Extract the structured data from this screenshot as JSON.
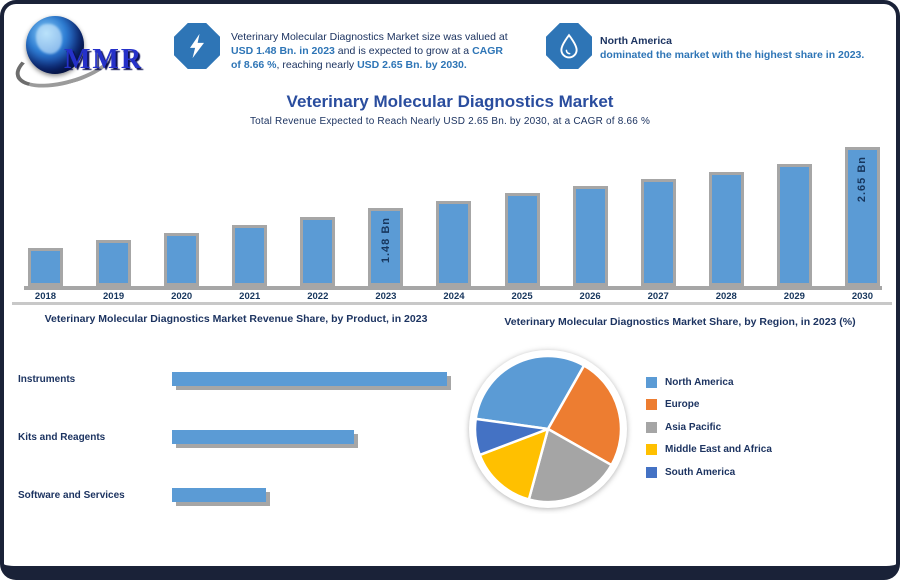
{
  "logo": {
    "brand": "MMR"
  },
  "header": {
    "block1": {
      "icon": "lightning-icon",
      "parts": [
        {
          "text": "Veterinary Molecular Diagnostics Market size was valued at ",
          "style": "dark"
        },
        {
          "text": "USD 1.48 Bn. in 2023",
          "style": "blue"
        },
        {
          "text": " and is expected to grow at a ",
          "style": "dark"
        },
        {
          "text": "CAGR of 8.66 %",
          "style": "blue"
        },
        {
          "text": ", reaching nearly ",
          "style": "dark"
        },
        {
          "text": "USD 2.65 Bn. by 2030.",
          "style": "blue"
        }
      ]
    },
    "block2": {
      "icon": "water-drop-icon",
      "line1": "North America",
      "line2": "dominated the market with the highest share in 2023."
    }
  },
  "title": "Veterinary Molecular Diagnostics Market",
  "subtitle": "Total Revenue Expected to Reach Nearly USD 2.65 Bn. by 2030, at a CAGR of 8.66 %",
  "colors": {
    "bar_blue": "#5B9BD5",
    "bar_border": "#A6A6A6",
    "navy_text": "#1D3461",
    "title_blue": "#2A4D9E",
    "accent_blue": "#2E75B6",
    "divider_gray": "#C8C8C8",
    "pie_palette": [
      "#5B9BD5",
      "#ED7D31",
      "#A5A5A5",
      "#FFC000",
      "#4472C4"
    ]
  },
  "chart_data": [
    {
      "id": "market-size-by-year",
      "type": "bar",
      "title": "Veterinary Molecular Diagnostics Market",
      "unit": "USD Bn",
      "categories": [
        "2018",
        "2019",
        "2020",
        "2021",
        "2022",
        "2023",
        "2024",
        "2025",
        "2026",
        "2027",
        "2028",
        "2029",
        "2030"
      ],
      "values": [
        0.72,
        0.88,
        1.01,
        1.17,
        1.32,
        1.48,
        1.62,
        1.77,
        1.9,
        2.04,
        2.18,
        2.33,
        2.65
      ],
      "value_labels": [
        null,
        null,
        null,
        null,
        null,
        "1.48 Bn",
        null,
        null,
        null,
        null,
        null,
        null,
        "2.65 Bn"
      ],
      "ylim": [
        0,
        2.65
      ],
      "grid": false,
      "bar_color": "#5B9BD5"
    },
    {
      "id": "share-by-product",
      "type": "bar",
      "orientation": "horizontal",
      "title": "Veterinary Molecular Diagnostics Market Revenue Share, by Product, in 2023",
      "categories": [
        "Instruments",
        "Kits and Reagents",
        "Software and Services"
      ],
      "values": [
        50,
        33,
        17
      ],
      "unit": "%",
      "bar_color": "#5B9BD5"
    },
    {
      "id": "share-by-region",
      "type": "pie",
      "title": "Veterinary Molecular Diagnostics Market Share, by Region, in 2023 (%)",
      "labels": [
        "North America",
        "Europe",
        "Asia Pacific",
        "Middle East and Africa",
        "South America"
      ],
      "values": [
        31,
        25,
        21,
        15,
        8
      ],
      "unit": "%",
      "colors": [
        "#5B9BD5",
        "#ED7D31",
        "#A5A5A5",
        "#FFC000",
        "#4472C4"
      ],
      "start_angle_deg": -82,
      "legend_position": "right"
    }
  ]
}
